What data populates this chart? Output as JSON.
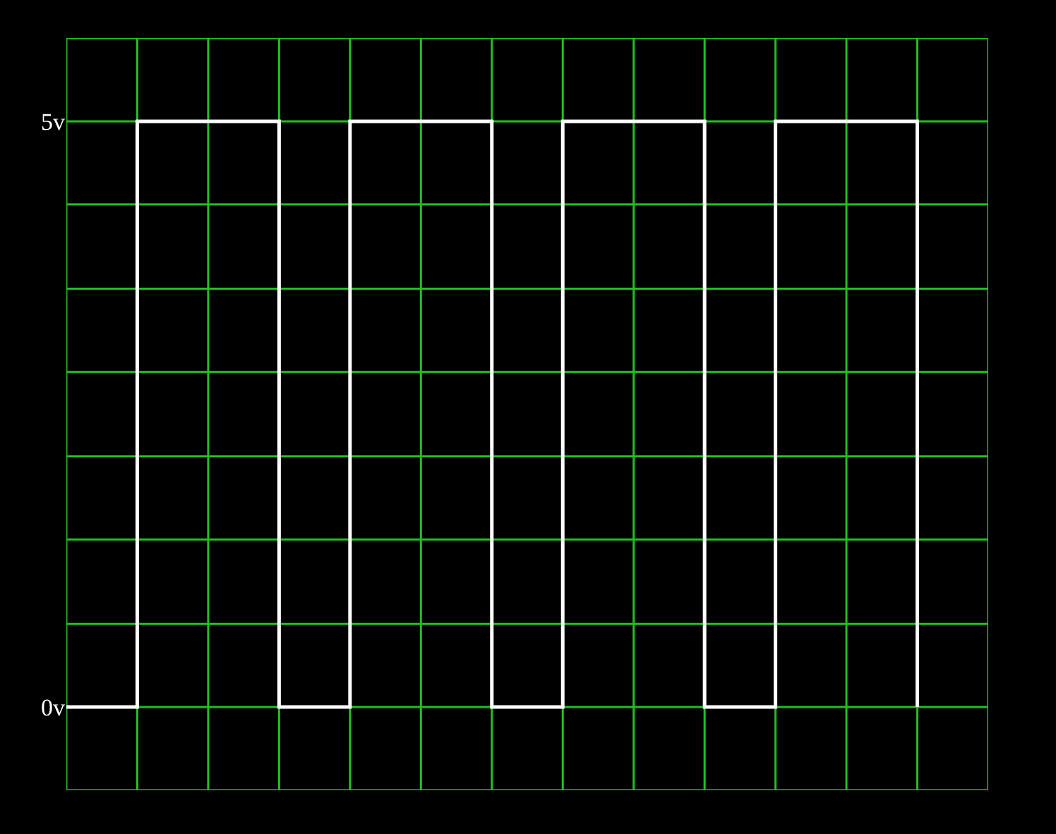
{
  "chart_data": {
    "type": "step",
    "categories": [
      null,
      null,
      null,
      null,
      null,
      null,
      null,
      null,
      null,
      null,
      null,
      null,
      null
    ],
    "series": [
      {
        "color": "#ffffff",
        "values": [
          0,
          5,
          5,
          0,
          5,
          5,
          0,
          5,
          5,
          0,
          5,
          5,
          0
        ]
      }
    ],
    "ylim": [
      -0.71,
      5.71
    ],
    "yticks": [
      {
        "value": -0.71,
        "label": null
      },
      {
        "value": 0,
        "label": "0v"
      },
      {
        "value": 0.71,
        "label": null
      },
      {
        "value": 1.43,
        "label": null
      },
      {
        "value": 2.14,
        "label": null
      },
      {
        "value": 2.86,
        "label": null
      },
      {
        "value": 3.57,
        "label": null
      },
      {
        "value": 4.29,
        "label": null
      },
      {
        "value": 5,
        "label": "5v"
      },
      {
        "value": 5.71,
        "label": null
      }
    ],
    "tick_labels": "y",
    "grid": true
  }
}
